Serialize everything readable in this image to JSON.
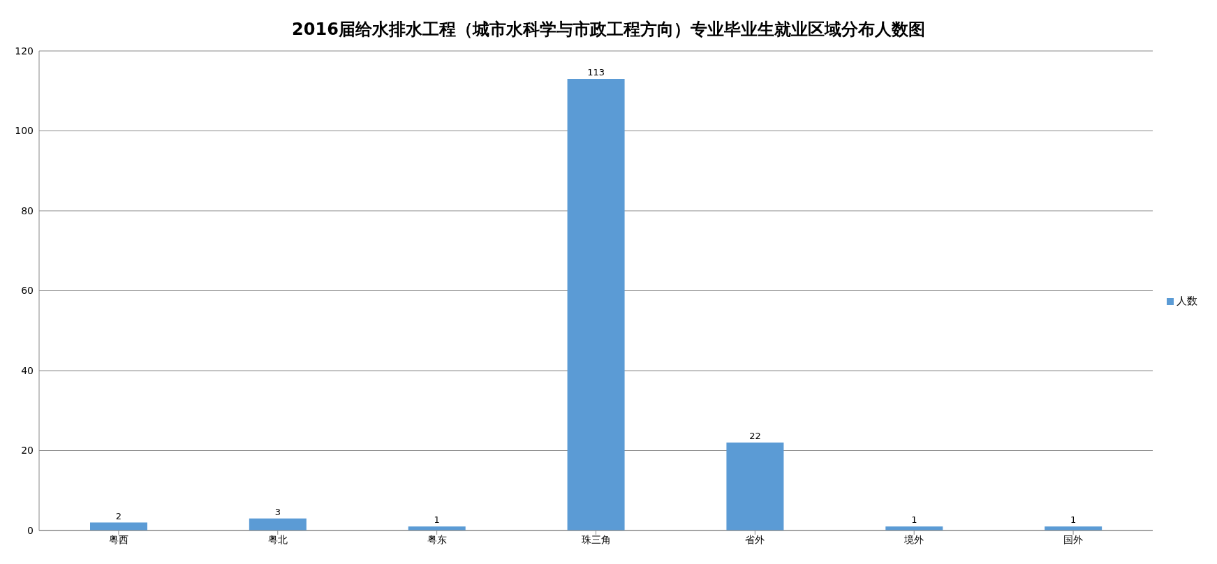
{
  "chart_data": {
    "type": "bar",
    "title": "2016届给水排水工程（城市水科学与市政工程方向）专业毕业生就业区域分布人数图",
    "categories": [
      "粤西",
      "粤北",
      "粤东",
      "珠三角",
      "省外",
      "境外",
      "国外"
    ],
    "series": [
      {
        "name": "人数",
        "color": "#5b9bd5",
        "values": [
          2,
          3,
          1,
          113,
          22,
          1,
          1
        ]
      }
    ],
    "ylim": [
      0,
      120
    ],
    "yticks": [
      0,
      20,
      40,
      60,
      80,
      100,
      120
    ],
    "grid": "y",
    "legend": "right",
    "data_labels": true
  }
}
